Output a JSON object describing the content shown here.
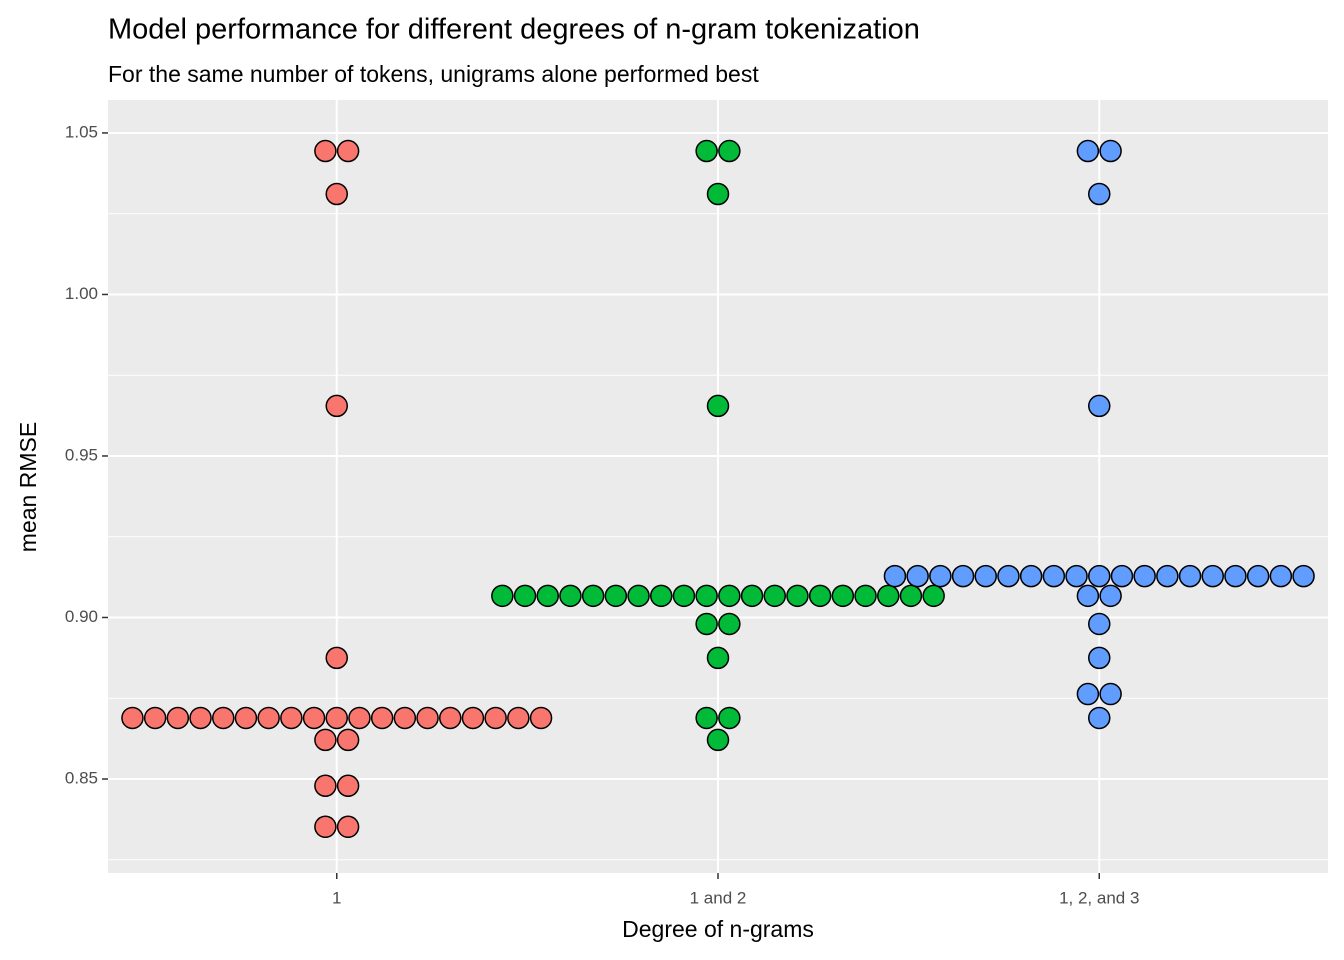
{
  "chart_data": {
    "type": "dotplot",
    "title": "Model performance for different degrees of n-gram tokenization",
    "subtitle": "For the same number of tokens, unigrams alone performed best",
    "x_label": "Degree of n-grams",
    "y_label": "mean RMSE",
    "categories": [
      "1",
      "1 and 2",
      "1, 2, and 3"
    ],
    "groups": [
      {
        "color": "#f8766d",
        "values": [
          1.0444,
          1.0444,
          1.0311,
          0.9655,
          0.8875,
          0.8689,
          0.8689,
          0.8689,
          0.8689,
          0.8689,
          0.8689,
          0.8689,
          0.8689,
          0.8689,
          0.8689,
          0.8689,
          0.8689,
          0.8689,
          0.8689,
          0.8689,
          0.8689,
          0.8689,
          0.8689,
          0.8689,
          0.8621,
          0.8621,
          0.8479,
          0.8479,
          0.8352,
          0.8352
        ]
      },
      {
        "color": "#00ba38",
        "values": [
          1.0444,
          1.0444,
          1.0311,
          0.9655,
          0.9067,
          0.9067,
          0.9067,
          0.9067,
          0.9067,
          0.9067,
          0.9067,
          0.9067,
          0.9067,
          0.9067,
          0.9067,
          0.9067,
          0.9067,
          0.9067,
          0.9067,
          0.9067,
          0.9067,
          0.9067,
          0.9067,
          0.9067,
          0.898,
          0.898,
          0.8875,
          0.8689,
          0.8689,
          0.8621
        ]
      },
      {
        "color": "#619cff",
        "values": [
          1.0444,
          1.0444,
          1.0311,
          0.9655,
          0.9128,
          0.9128,
          0.9128,
          0.9128,
          0.9128,
          0.9128,
          0.9128,
          0.9128,
          0.9128,
          0.9128,
          0.9128,
          0.9128,
          0.9128,
          0.9128,
          0.9128,
          0.9128,
          0.9128,
          0.9128,
          0.9128,
          0.9067,
          0.9067,
          0.898,
          0.8875,
          0.8763,
          0.8763,
          0.8689
        ]
      }
    ],
    "ylim": [
      0.8209,
      1.0602
    ],
    "yticks": [
      0.85,
      {
        "value": 0.9,
        "label": "0.90"
      },
      0.95,
      {
        "value": 1,
        "label": "1.00"
      },
      1.05
    ],
    "minor_yticks": [
      0.825,
      0.875,
      0.925,
      0.975,
      1.025
    ],
    "grid": true
  }
}
